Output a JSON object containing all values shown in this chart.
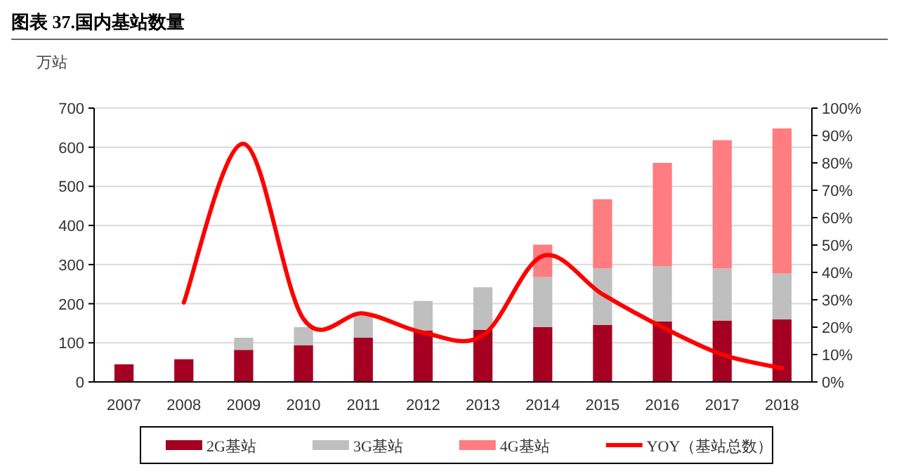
{
  "chart_data": {
    "type": "bar",
    "stacked": true,
    "title": "图表 37.国内基站数量",
    "ylabel": "万站",
    "categories": [
      "2007",
      "2008",
      "2009",
      "2010",
      "2011",
      "2012",
      "2013",
      "2014",
      "2015",
      "2016",
      "2017",
      "2018"
    ],
    "series": [
      {
        "name": "2G基站",
        "color": "#a50021",
        "values": [
          45,
          58,
          82,
          94,
          113,
          131,
          133,
          140,
          146,
          155,
          157,
          160
        ]
      },
      {
        "name": "3G基站",
        "color": "#bfbfbf",
        "values": [
          0,
          0,
          31,
          46,
          57,
          76,
          109,
          128,
          144,
          141,
          133,
          117
        ]
      },
      {
        "name": "4G基站",
        "color": "#ff7c80",
        "values": [
          0,
          0,
          0,
          0,
          0,
          0,
          0,
          83,
          177,
          264,
          328,
          371
        ]
      },
      {
        "name": "YOY（基站总数）",
        "color": "#ff0000",
        "type": "line",
        "axis": "y2",
        "values": [
          null,
          29,
          87,
          23,
          25,
          18,
          17,
          46,
          32,
          20,
          10,
          5
        ]
      }
    ],
    "ylim": [
      0,
      700
    ],
    "yticks": [
      0,
      100,
      200,
      300,
      400,
      500,
      600,
      700
    ],
    "y2lim": [
      0,
      100
    ],
    "y2ticks": [
      {
        "value": 0,
        "label": "0%"
      },
      {
        "value": 10,
        "label": "10%"
      },
      {
        "value": 20,
        "label": "20%"
      },
      {
        "value": 30,
        "label": "30%"
      },
      {
        "value": 40,
        "label": "40%"
      },
      {
        "value": 50,
        "label": "50%"
      },
      {
        "value": 60,
        "label": "60%"
      },
      {
        "value": 70,
        "label": "70%"
      },
      {
        "value": 80,
        "label": "80%"
      },
      {
        "value": 90,
        "label": "90%"
      },
      {
        "value": 100,
        "label": "100%"
      }
    ],
    "grid": "y",
    "legend": "bottom"
  }
}
